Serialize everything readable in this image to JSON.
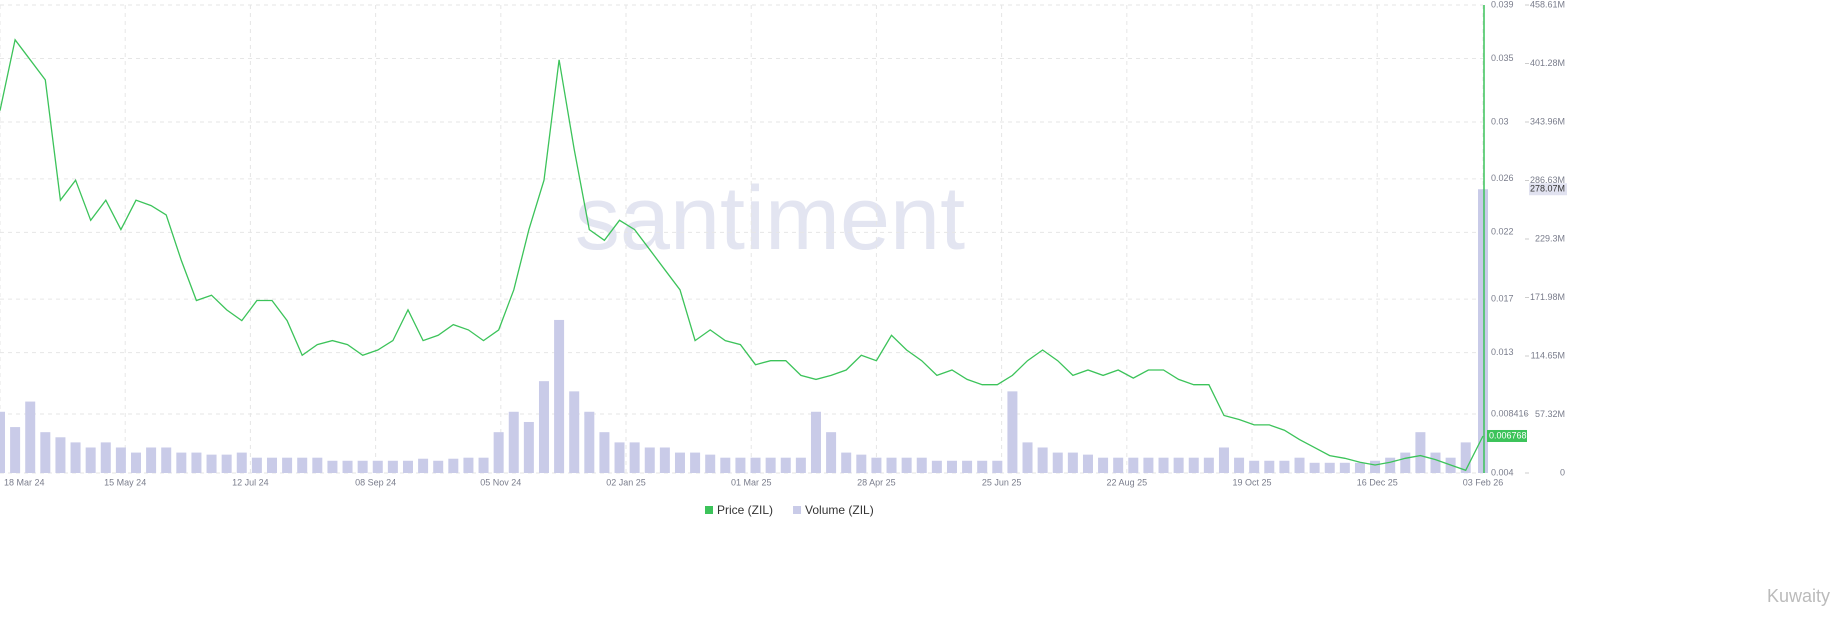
{
  "chart_data": {
    "type": "line",
    "watermark": "santiment",
    "credit": "Kuwaity",
    "x": [
      "2024-03-18",
      "2024-03-25",
      "2024-04-01",
      "2024-04-08",
      "2024-04-15",
      "2024-04-22",
      "2024-04-29",
      "2024-05-06",
      "2024-05-13",
      "2024-05-20",
      "2024-05-27",
      "2024-06-03",
      "2024-06-10",
      "2024-06-17",
      "2024-06-24",
      "2024-07-01",
      "2024-07-08",
      "2024-07-15",
      "2024-07-22",
      "2024-07-29",
      "2024-08-05",
      "2024-08-12",
      "2024-08-19",
      "2024-08-26",
      "2024-09-02",
      "2024-09-09",
      "2024-09-16",
      "2024-09-23",
      "2024-09-30",
      "2024-10-07",
      "2024-10-14",
      "2024-10-21",
      "2024-10-28",
      "2024-11-04",
      "2024-11-11",
      "2024-11-18",
      "2024-11-25",
      "2024-12-02",
      "2024-12-09",
      "2024-12-16",
      "2024-12-23",
      "2024-12-30",
      "2025-01-06",
      "2025-01-13",
      "2025-01-20",
      "2025-01-27",
      "2025-02-03",
      "2025-02-10",
      "2025-02-17",
      "2025-02-24",
      "2025-03-03",
      "2025-03-10",
      "2025-03-17",
      "2025-03-24",
      "2025-03-31",
      "2025-04-07",
      "2025-04-14",
      "2025-04-21",
      "2025-04-28",
      "2025-05-05",
      "2025-05-12",
      "2025-05-19",
      "2025-05-26",
      "2025-06-02",
      "2025-06-09",
      "2025-06-16",
      "2025-06-23",
      "2025-06-30",
      "2025-07-07",
      "2025-07-14",
      "2025-07-21",
      "2025-07-28",
      "2025-08-04",
      "2025-08-11",
      "2025-08-18",
      "2025-08-25",
      "2025-09-01",
      "2025-09-08",
      "2025-09-15",
      "2025-09-22",
      "2025-09-29",
      "2025-10-06",
      "2025-10-13",
      "2025-10-20",
      "2025-10-27",
      "2025-11-03",
      "2025-11-10",
      "2025-11-17",
      "2025-11-24",
      "2025-12-01",
      "2025-12-08",
      "2025-12-15",
      "2025-12-22",
      "2025-12-29",
      "2026-01-05",
      "2026-01-12",
      "2026-01-19",
      "2026-01-26",
      "2026-02-03"
    ],
    "xlim": [
      "2024-03-18",
      "2026-02-03"
    ],
    "xticks": [
      {
        "value": "2024-03-18",
        "label": "18 Mar 24"
      },
      {
        "value": "2024-05-15",
        "label": "15 May 24"
      },
      {
        "value": "2024-07-12",
        "label": "12 Jul 24"
      },
      {
        "value": "2024-09-08",
        "label": "08 Sep 24"
      },
      {
        "value": "2024-11-05",
        "label": "05 Nov 24"
      },
      {
        "value": "2025-01-02",
        "label": "02 Jan 25"
      },
      {
        "value": "2025-03-01",
        "label": "01 Mar 25"
      },
      {
        "value": "2025-04-28",
        "label": "28 Apr 25"
      },
      {
        "value": "2025-06-25",
        "label": "25 Jun 25"
      },
      {
        "value": "2025-08-22",
        "label": "22 Aug 25"
      },
      {
        "value": "2025-10-19",
        "label": "19 Oct 25"
      },
      {
        "value": "2025-12-16",
        "label": "16 Dec 25"
      },
      {
        "value": "2026-02-03",
        "label": "03 Feb 26"
      }
    ],
    "ylim": [
      0.004,
      0.039
    ],
    "yticks": [
      0.004,
      0.008416,
      0.013,
      0.017,
      0.022,
      0.026,
      {
        "value": 0.03025,
        "label": "0.03"
      },
      0.035,
      0.039
    ],
    "y2lim": [
      0,
      458610000
    ],
    "y2ticks": [
      0,
      {
        "value": 57320000,
        "label": "57.32M"
      },
      {
        "value": 114650000,
        "label": "114.65M"
      },
      {
        "value": 171980000,
        "label": "171.98M"
      },
      {
        "value": 229300000,
        "label": "229.3M"
      },
      {
        "value": 286630000,
        "label": "286.63M"
      },
      {
        "value": 343960000,
        "label": "343.96M"
      },
      {
        "value": 401280000,
        "label": "401.28M"
      },
      {
        "value": 458610000,
        "label": "458.61M"
      }
    ],
    "y2_marker": {
      "value": 278070000,
      "label": "278.07M"
    },
    "grid": true,
    "series": [
      {
        "name": "Price (ZIL)",
        "color": "#3cc35a",
        "values": [
          0.0311,
          0.0364,
          0.0349,
          0.0334,
          0.0244,
          0.0259,
          0.0229,
          0.0244,
          0.0222,
          0.0244,
          0.024,
          0.0233,
          0.0199,
          0.0169,
          0.0173,
          0.0162,
          0.0154,
          0.0169,
          0.0169,
          0.0154,
          0.0128,
          0.0136,
          0.0139,
          0.0136,
          0.0128,
          0.0132,
          0.0139,
          0.0162,
          0.0139,
          0.0143,
          0.0151,
          0.0147,
          0.0139,
          0.0147,
          0.0177,
          0.0222,
          0.0259,
          0.0349,
          0.0282,
          0.0222,
          0.0214,
          0.0229,
          0.0222,
          0.0207,
          0.0192,
          0.0177,
          0.0139,
          0.0147,
          0.0139,
          0.0136,
          0.0121,
          0.0124,
          0.0124,
          0.0113,
          0.011,
          0.0113,
          0.0117,
          0.0128,
          0.0124,
          0.0143,
          0.0132,
          0.0124,
          0.0113,
          0.0117,
          0.011,
          0.0106,
          0.0106,
          0.0113,
          0.0124,
          0.0132,
          0.0124,
          0.0113,
          0.0117,
          0.0113,
          0.0117,
          0.0111,
          0.0117,
          0.0117,
          0.011,
          0.0106,
          0.0106,
          0.0083,
          0.008,
          0.0076,
          0.0076,
          0.0072,
          0.0065,
          0.0059,
          0.0053,
          0.0051,
          0.0048,
          0.0046,
          0.0048,
          0.0051,
          0.0053,
          0.005,
          0.0046,
          0.0042,
          0.006768
        ]
      },
      {
        "name": "Volume (ZIL)",
        "color": "#c9cbe8",
        "axis": "y2",
        "type": "bar",
        "values": [
          60000000,
          45000000,
          70000000,
          40000000,
          35000000,
          30000000,
          25000000,
          30000000,
          25000000,
          20000000,
          25000000,
          25000000,
          20000000,
          20000000,
          18000000,
          18000000,
          20000000,
          15000000,
          15000000,
          15000000,
          15000000,
          15000000,
          12000000,
          12000000,
          12000000,
          12000000,
          12000000,
          12000000,
          14000000,
          12000000,
          14000000,
          15000000,
          15000000,
          40000000,
          60000000,
          50000000,
          90000000,
          150000000,
          80000000,
          60000000,
          40000000,
          30000000,
          30000000,
          25000000,
          25000000,
          20000000,
          20000000,
          18000000,
          15000000,
          15000000,
          15000000,
          15000000,
          15000000,
          15000000,
          60000000,
          40000000,
          20000000,
          18000000,
          15000000,
          15000000,
          15000000,
          15000000,
          12000000,
          12000000,
          12000000,
          12000000,
          12000000,
          80000000,
          30000000,
          25000000,
          20000000,
          20000000,
          18000000,
          15000000,
          15000000,
          15000000,
          15000000,
          15000000,
          15000000,
          15000000,
          15000000,
          25000000,
          15000000,
          12000000,
          12000000,
          12000000,
          15000000,
          10000000,
          10000000,
          10000000,
          10000000,
          12000000,
          15000000,
          20000000,
          40000000,
          20000000,
          15000000,
          30000000,
          278070000
        ]
      }
    ]
  }
}
